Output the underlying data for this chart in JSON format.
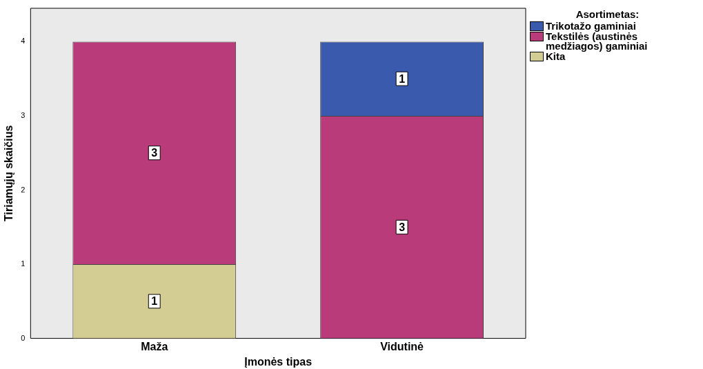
{
  "chart_data": {
    "type": "bar",
    "stacked": true,
    "xlabel": "Įmonės tipas",
    "ylabel": "Tiriamųjų skaičius",
    "legend_title": "Asortimetas:",
    "legend": "right",
    "categories": [
      "Maža",
      "Vidutinė"
    ],
    "series": [
      {
        "name": "Kita",
        "color": "#d4cd93",
        "values": [
          1,
          null
        ]
      },
      {
        "name": "Tekstilės (austinės medžiagos) gaminiai",
        "color": "#b93b7a",
        "values": [
          3,
          3
        ]
      },
      {
        "name": "Trikotažo gaminiai",
        "color": "#3a5aad",
        "values": [
          null,
          1
        ]
      }
    ],
    "ylim": [
      0,
      4.45
    ],
    "yticks": [
      0,
      1,
      2,
      3,
      4
    ],
    "grid": false,
    "data_labels": true
  }
}
